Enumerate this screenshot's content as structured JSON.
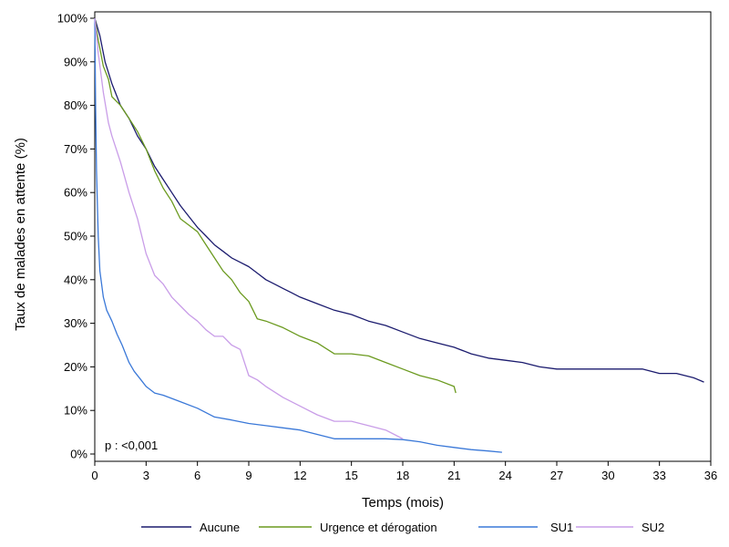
{
  "chart_data": {
    "type": "line",
    "xlabel": "Temps (mois)",
    "ylabel": "Taux de malades en attente (%)",
    "xlim": [
      0,
      36
    ],
    "ylim": [
      0,
      100
    ],
    "x_ticks": [
      0,
      3,
      6,
      9,
      12,
      15,
      18,
      21,
      24,
      27,
      30,
      33,
      36
    ],
    "x_tick_labels": [
      "0",
      "3",
      "6",
      "9",
      "12",
      "15",
      "18",
      "21",
      "24",
      "27",
      "30",
      "33",
      "36"
    ],
    "y_ticks": [
      0,
      10,
      20,
      30,
      40,
      50,
      60,
      70,
      80,
      90,
      100
    ],
    "y_tick_labels": [
      "0%",
      "10%",
      "20%",
      "30%",
      "40%",
      "50%",
      "60%",
      "70%",
      "80%",
      "90%",
      "100%"
    ],
    "annotation": "p : <0,001",
    "grid": false,
    "legend_position": "bottom",
    "series": [
      {
        "name": "Aucune",
        "color": "#1b1b6e",
        "points": [
          [
            0,
            100
          ],
          [
            0.3,
            96
          ],
          [
            0.6,
            90
          ],
          [
            1,
            85
          ],
          [
            1.5,
            80
          ],
          [
            2,
            77
          ],
          [
            2.5,
            73
          ],
          [
            3,
            70
          ],
          [
            3.5,
            66
          ],
          [
            4,
            63
          ],
          [
            4.5,
            60
          ],
          [
            5,
            57
          ],
          [
            5.5,
            54.5
          ],
          [
            6,
            52
          ],
          [
            6.5,
            50
          ],
          [
            7,
            48
          ],
          [
            7.5,
            46.5
          ],
          [
            8,
            45
          ],
          [
            8.5,
            44
          ],
          [
            9,
            43
          ],
          [
            9.5,
            41.5
          ],
          [
            10,
            40
          ],
          [
            10.5,
            39
          ],
          [
            11,
            38
          ],
          [
            11.5,
            37
          ],
          [
            12,
            36
          ],
          [
            13,
            34.5
          ],
          [
            14,
            33
          ],
          [
            15,
            32
          ],
          [
            16,
            30.5
          ],
          [
            17,
            29.5
          ],
          [
            18,
            28
          ],
          [
            19,
            26.5
          ],
          [
            20,
            25.5
          ],
          [
            21,
            24.5
          ],
          [
            22,
            23
          ],
          [
            23,
            22
          ],
          [
            24,
            21.5
          ],
          [
            25,
            21
          ],
          [
            26,
            20
          ],
          [
            27,
            19.5
          ],
          [
            28,
            19.5
          ],
          [
            29,
            19.5
          ],
          [
            30,
            19.5
          ],
          [
            31,
            19.5
          ],
          [
            32,
            19.5
          ],
          [
            33,
            18.5
          ],
          [
            34,
            18.5
          ],
          [
            35,
            17.5
          ],
          [
            35.6,
            16.5
          ]
        ]
      },
      {
        "name": "Urgence et dérogation",
        "color": "#6b9a1f",
        "points": [
          [
            0,
            100
          ],
          [
            0.2,
            95
          ],
          [
            0.5,
            89
          ],
          [
            0.8,
            86
          ],
          [
            1,
            82
          ],
          [
            1.5,
            80
          ],
          [
            2,
            77
          ],
          [
            2.5,
            74
          ],
          [
            3,
            70
          ],
          [
            3.5,
            65
          ],
          [
            4,
            61
          ],
          [
            4.5,
            58
          ],
          [
            5,
            54
          ],
          [
            5.5,
            52.5
          ],
          [
            6,
            51
          ],
          [
            6.5,
            48
          ],
          [
            7,
            45
          ],
          [
            7.5,
            42
          ],
          [
            8,
            40
          ],
          [
            8.5,
            37
          ],
          [
            9,
            35
          ],
          [
            9.5,
            31
          ],
          [
            10,
            30.5
          ],
          [
            11,
            29
          ],
          [
            12,
            27
          ],
          [
            13,
            25.5
          ],
          [
            14,
            23
          ],
          [
            15,
            23
          ],
          [
            16,
            22.5
          ],
          [
            17,
            21
          ],
          [
            18,
            19.5
          ],
          [
            19,
            18
          ],
          [
            20,
            17
          ],
          [
            21,
            15.5
          ],
          [
            21.1,
            14
          ]
        ]
      },
      {
        "name": "SU1",
        "color": "#3a78d8",
        "points": [
          [
            0,
            100
          ],
          [
            0.05,
            80
          ],
          [
            0.1,
            65
          ],
          [
            0.2,
            50
          ],
          [
            0.3,
            42
          ],
          [
            0.5,
            36
          ],
          [
            0.7,
            33
          ],
          [
            1,
            30.5
          ],
          [
            1.3,
            27.5
          ],
          [
            1.6,
            25
          ],
          [
            2,
            21
          ],
          [
            2.3,
            19
          ],
          [
            2.7,
            17
          ],
          [
            3,
            15.5
          ],
          [
            3.5,
            14
          ],
          [
            4,
            13.5
          ],
          [
            5,
            12
          ],
          [
            6,
            10.5
          ],
          [
            7,
            8.5
          ],
          [
            8,
            7.8
          ],
          [
            9,
            7
          ],
          [
            10,
            6.5
          ],
          [
            11,
            6
          ],
          [
            12,
            5.5
          ],
          [
            13,
            4.5
          ],
          [
            14,
            3.5
          ],
          [
            15,
            3.5
          ],
          [
            16,
            3.5
          ],
          [
            17,
            3.5
          ],
          [
            18,
            3.3
          ],
          [
            19,
            2.8
          ],
          [
            20,
            2
          ],
          [
            21,
            1.5
          ],
          [
            22,
            1
          ],
          [
            23,
            0.7
          ],
          [
            23.8,
            0.4
          ]
        ]
      },
      {
        "name": "SU2",
        "color": "#c99de8",
        "points": [
          [
            0,
            100
          ],
          [
            0.2,
            92
          ],
          [
            0.5,
            83
          ],
          [
            0.8,
            76
          ],
          [
            1,
            73
          ],
          [
            1.5,
            67
          ],
          [
            2,
            60
          ],
          [
            2.5,
            54
          ],
          [
            3,
            46
          ],
          [
            3.5,
            41
          ],
          [
            4,
            39
          ],
          [
            4.5,
            36
          ],
          [
            5,
            34
          ],
          [
            5.5,
            32
          ],
          [
            6,
            30.5
          ],
          [
            6.5,
            28.5
          ],
          [
            7,
            27
          ],
          [
            7.5,
            27
          ],
          [
            8,
            25
          ],
          [
            8.5,
            24
          ],
          [
            9,
            18
          ],
          [
            9.5,
            17
          ],
          [
            10,
            15.5
          ],
          [
            11,
            13
          ],
          [
            12,
            11
          ],
          [
            13,
            9
          ],
          [
            14,
            7.5
          ],
          [
            15,
            7.5
          ],
          [
            16,
            6.5
          ],
          [
            17,
            5.5
          ],
          [
            17.5,
            4.5
          ],
          [
            18,
            3.5
          ]
        ]
      }
    ]
  }
}
